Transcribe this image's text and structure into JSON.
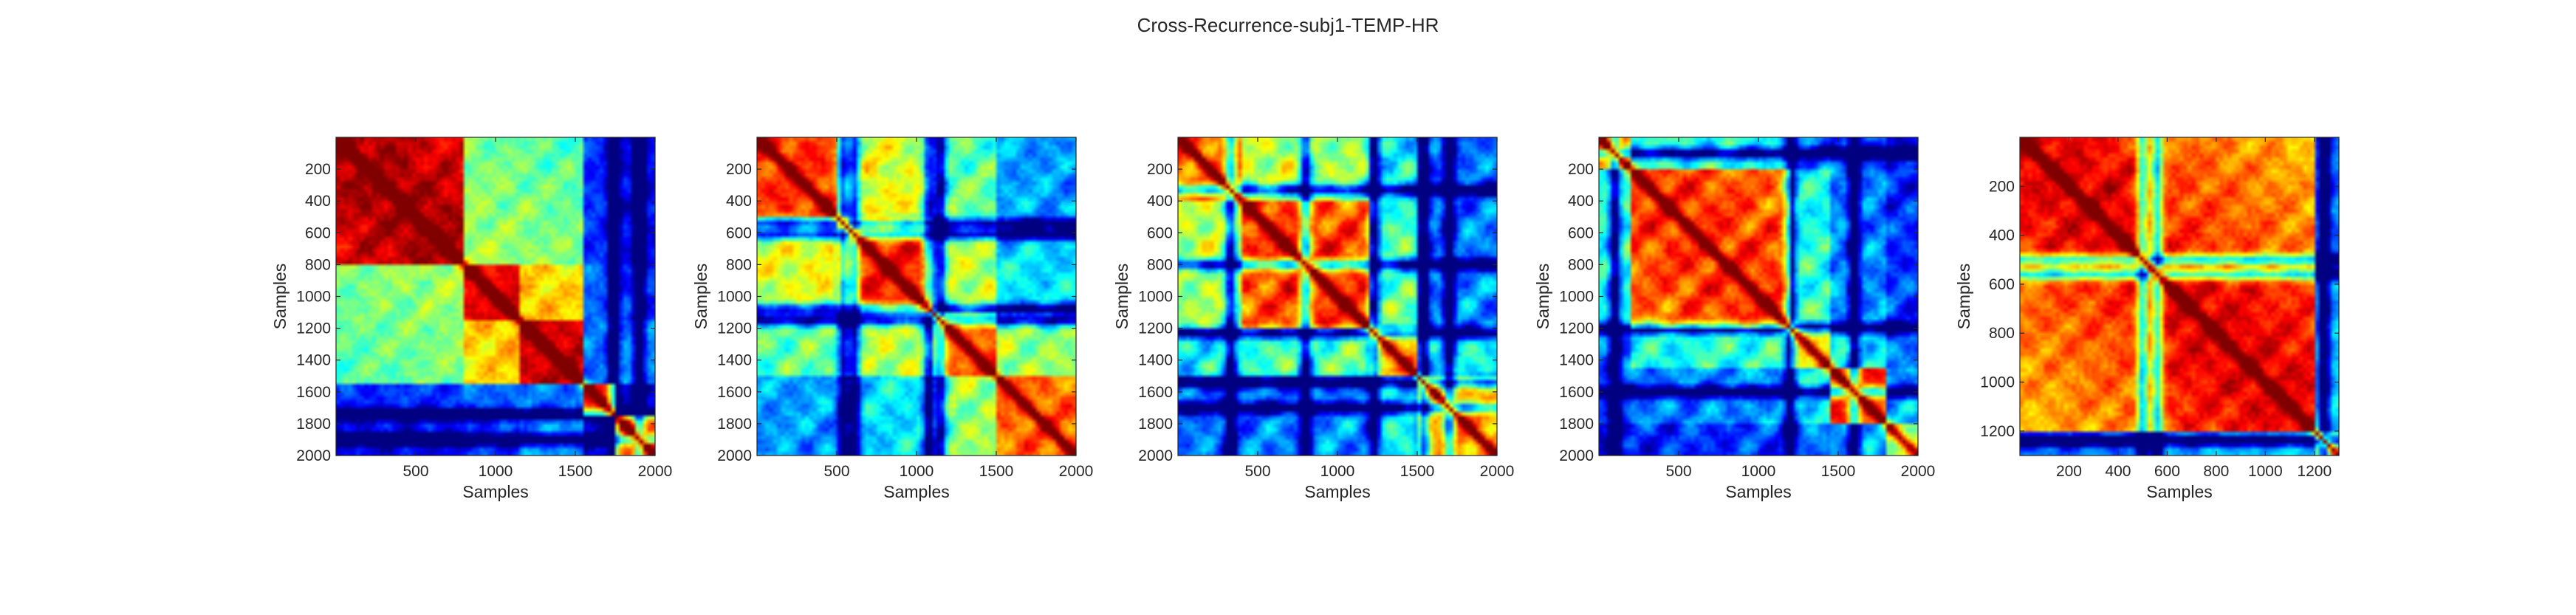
{
  "figure": {
    "title": "Cross-Recurrence-subj1-TEMP-HR"
  },
  "colors": {
    "colormap": "jet",
    "axis": "#262626",
    "background": "#ffffff"
  },
  "chart_data": [
    {
      "type": "heatmap",
      "title": "",
      "xlabel": "Samples",
      "ylabel": "Samples",
      "xlim": [
        0,
        2000
      ],
      "ylim": [
        0,
        2000
      ],
      "y_direction": "reverse",
      "xticks": [
        500,
        1000,
        1500,
        2000
      ],
      "yticks": [
        200,
        400,
        600,
        800,
        1000,
        1200,
        1400,
        1600,
        1800,
        2000
      ],
      "value_range": [
        0,
        1
      ],
      "colormap": "jet",
      "segment_breaks": [
        0,
        800,
        1150,
        1550,
        1750,
        2000
      ],
      "segment_levels": [
        0.98,
        0.92,
        0.95,
        0.88,
        0.9
      ],
      "block_similarity": [
        [
          null,
          0.55,
          0.55,
          0.2,
          0.15
        ],
        [
          0.55,
          null,
          0.7,
          0.25,
          0.2
        ],
        [
          0.55,
          0.7,
          null,
          0.25,
          0.3
        ],
        [
          0.2,
          0.25,
          0.25,
          null,
          0.1
        ],
        [
          0.15,
          0.2,
          0.3,
          0.1,
          null
        ]
      ],
      "stripe_lines": [
        1740,
        1900
      ],
      "texture": 0.55
    },
    {
      "type": "heatmap",
      "title": "",
      "xlabel": "Samples",
      "ylabel": "Samples",
      "xlim": [
        0,
        2000
      ],
      "ylim": [
        0,
        2000
      ],
      "y_direction": "reverse",
      "xticks": [
        500,
        1000,
        1500,
        2000
      ],
      "yticks": [
        200,
        400,
        600,
        800,
        1000,
        1200,
        1400,
        1600,
        1800,
        2000
      ],
      "value_range": [
        0,
        1
      ],
      "colormap": "jet",
      "segment_breaks": [
        0,
        500,
        1100,
        1500,
        2000
      ],
      "segment_levels": [
        0.85,
        0.88,
        0.82,
        0.8
      ],
      "block_similarity": [
        [
          null,
          0.65,
          0.55,
          0.35
        ],
        [
          0.65,
          null,
          0.6,
          0.4
        ],
        [
          0.55,
          0.6,
          null,
          0.55
        ],
        [
          0.35,
          0.4,
          0.55,
          null
        ]
      ],
      "stripe_lines": [
        540,
        610,
        1080,
        1150
      ],
      "texture": 0.8
    },
    {
      "type": "heatmap",
      "title": "",
      "xlabel": "Samples",
      "ylabel": "Samples",
      "xlim": [
        0,
        2000
      ],
      "ylim": [
        0,
        2000
      ],
      "y_direction": "reverse",
      "xticks": [
        500,
        1000,
        1500,
        2000
      ],
      "yticks": [
        200,
        400,
        600,
        800,
        1000,
        1200,
        1400,
        1600,
        1800,
        2000
      ],
      "value_range": [
        0,
        1
      ],
      "colormap": "jet",
      "segment_breaks": [
        0,
        400,
        1200,
        1500,
        2000
      ],
      "segment_levels": [
        0.8,
        0.85,
        0.75,
        0.75
      ],
      "block_similarity": [
        [
          null,
          0.6,
          0.45,
          0.3
        ],
        [
          0.6,
          null,
          0.5,
          0.3
        ],
        [
          0.45,
          0.5,
          null,
          0.4
        ],
        [
          0.3,
          0.3,
          0.4,
          null
        ]
      ],
      "stripe_lines": [
        330,
        800,
        1230,
        1540,
        1700
      ],
      "texture": 1.0
    },
    {
      "type": "heatmap",
      "title": "",
      "xlabel": "Samples",
      "ylabel": "Samples",
      "xlim": [
        0,
        2000
      ],
      "ylim": [
        0,
        2000
      ],
      "y_direction": "reverse",
      "xticks": [
        500,
        1000,
        1500,
        2000
      ],
      "yticks": [
        200,
        400,
        600,
        800,
        1000,
        1200,
        1400,
        1600,
        1800,
        2000
      ],
      "value_range": [
        0,
        1
      ],
      "colormap": "jet",
      "segment_breaks": [
        0,
        200,
        1200,
        1450,
        1800,
        2000
      ],
      "segment_levels": [
        0.8,
        0.85,
        0.7,
        0.85,
        0.6
      ],
      "block_similarity": [
        [
          null,
          0.45,
          0.3,
          0.25,
          0.15
        ],
        [
          0.45,
          null,
          0.45,
          0.3,
          0.2
        ],
        [
          0.3,
          0.45,
          null,
          0.4,
          0.25
        ],
        [
          0.25,
          0.3,
          0.4,
          null,
          0.3
        ],
        [
          0.15,
          0.2,
          0.25,
          0.3,
          null
        ]
      ],
      "stripe_lines": [
        100,
        1200,
        1600
      ],
      "texture": 0.9
    },
    {
      "type": "heatmap",
      "title": "",
      "xlabel": "Samples",
      "ylabel": "Samples",
      "xlim": [
        0,
        1300
      ],
      "ylim": [
        0,
        1300
      ],
      "y_direction": "reverse",
      "xticks": [
        200,
        400,
        600,
        800,
        1000,
        1200
      ],
      "yticks": [
        200,
        400,
        600,
        800,
        1000,
        1200
      ],
      "value_range": [
        0,
        1
      ],
      "colormap": "jet",
      "segment_breaks": [
        0,
        520,
        1200,
        1300
      ],
      "segment_levels": [
        0.92,
        0.92,
        0.6
      ],
      "block_similarity": [
        [
          null,
          0.88,
          0.3
        ],
        [
          0.88,
          null,
          0.35
        ],
        [
          0.3,
          0.35,
          null
        ]
      ],
      "stripe_lines": [
        500,
        560,
        1240
      ],
      "texture": 0.6
    }
  ]
}
